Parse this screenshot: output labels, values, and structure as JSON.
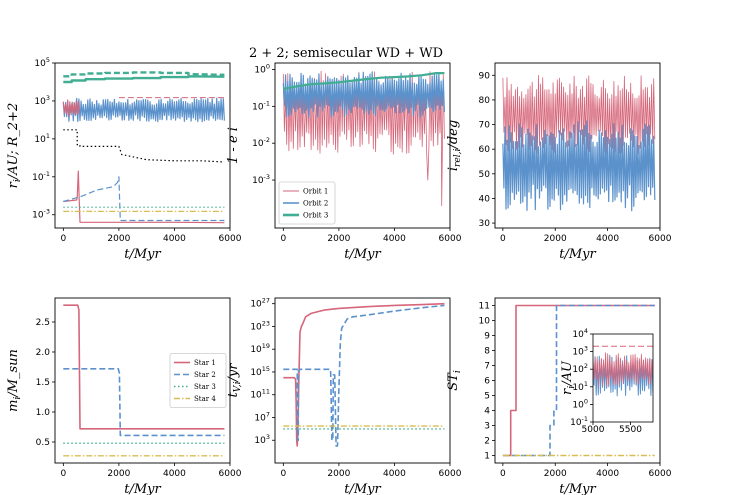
{
  "title": "2 + 2; semisecular WD + WD",
  "colors": {
    "red": "#d6667a",
    "blue": "#5b92cc",
    "green": "#41ad92",
    "yellow": "#d8bd52",
    "black": "#000000"
  },
  "chart_data": [
    {
      "id": "p1",
      "type": "line",
      "xlabel": "t/Myr",
      "ylabel": "r_i/AU; R_2+2",
      "yscale": "log",
      "xlim": [
        -300,
        6000
      ],
      "ylim": [
        0.0002,
        100000
      ],
      "xticks": [
        0,
        2000,
        4000,
        6000
      ],
      "xticklabels": [
        "0",
        "2000",
        "4000",
        "6000"
      ],
      "yticks": [
        0.001,
        0.1,
        10,
        1000,
        100000
      ],
      "yticklabels": [
        "10^-3",
        "10^-1",
        "10^1",
        "10^3",
        "10^5"
      ],
      "series": [
        {
          "color": "green",
          "style": "solid",
          "width": 2.4,
          "x": [
            0,
            300,
            300,
            800,
            800,
            1500,
            1500,
            2500,
            2500,
            3500,
            3500,
            4500,
            4500,
            5800
          ],
          "y": [
            10000,
            10000,
            12000,
            12000,
            14000,
            14000,
            15000,
            15000,
            16000,
            16000,
            18000,
            18000,
            20000,
            19000
          ]
        },
        {
          "color": "green",
          "style": "dashed",
          "width": 2.4,
          "x": [
            0,
            300,
            300,
            800,
            800,
            1500,
            1500,
            2500,
            2500,
            3500,
            3500,
            4500,
            4500,
            5800
          ],
          "y": [
            20000,
            20000,
            25000,
            25000,
            28000,
            28000,
            30000,
            30000,
            32000,
            32000,
            30000,
            30000,
            26000,
            24000
          ]
        },
        {
          "color": "blue",
          "style": "solid",
          "width": 1.2,
          "osc": true,
          "x": [
            0,
            5800
          ],
          "ylow": 80,
          "yhigh": 1400
        },
        {
          "color": "red",
          "style": "solid",
          "width": 1.0,
          "osc": true,
          "x": [
            0,
            580
          ],
          "ylow": 150,
          "yhigh": 1200
        },
        {
          "color": "red",
          "style": "solid",
          "width": 1.2,
          "x": [
            0,
            480,
            500,
            540,
            580,
            600,
            800,
            1800,
            2500,
            4000,
            5800
          ],
          "y": [
            0.005,
            0.006,
            0.008,
            0.2,
            0.003,
            0.0004,
            0.0004,
            0.0004,
            0.0004,
            0.0004,
            0.00038
          ]
        },
        {
          "color": "red",
          "style": "dashed",
          "width": 1.0,
          "x": [
            2000,
            5800
          ],
          "y": [
            1500,
            1500
          ]
        },
        {
          "color": "blue",
          "style": "dashed",
          "width": 1.2,
          "x": [
            0,
            200,
            500,
            700,
            1200,
            1800,
            1950,
            2000,
            2050,
            2300,
            4000,
            5800
          ],
          "y": [
            0.005,
            0.006,
            0.008,
            0.01,
            0.02,
            0.03,
            0.05,
            0.1,
            0.0005,
            0.0005,
            0.0005,
            0.0005
          ]
        },
        {
          "color": "black",
          "style": "dotted",
          "width": 1.2,
          "x": [
            0,
            500,
            500,
            600,
            600,
            2000,
            2100,
            3000,
            4000,
            5000,
            5800
          ],
          "y": [
            30,
            30,
            5,
            5,
            4,
            4,
            1.5,
            0.8,
            0.7,
            0.7,
            0.6
          ]
        },
        {
          "color": "green",
          "style": "dotted",
          "width": 1.2,
          "x": [
            0,
            5800
          ],
          "y": [
            0.0025,
            0.0025
          ]
        },
        {
          "color": "yellow",
          "style": "dashdot",
          "width": 1.2,
          "x": [
            0,
            5800
          ],
          "y": [
            0.0015,
            0.0015
          ]
        }
      ]
    },
    {
      "id": "p2",
      "type": "line",
      "xlabel": "t/Myr",
      "ylabel": "1 - e_i",
      "yscale": "log",
      "xlim": [
        -300,
        6000
      ],
      "ylim": [
        5e-05,
        1.5
      ],
      "xticks": [
        0,
        2000,
        4000,
        6000
      ],
      "xticklabels": [
        "0",
        "2000",
        "4000",
        "6000"
      ],
      "yticks": [
        0.001,
        0.01,
        0.1,
        1
      ],
      "yticklabels": [
        "10^-3",
        "10^-2",
        "10^-1",
        "10^0"
      ],
      "legend": {
        "position": "lower left",
        "entries": [
          {
            "label": "Orbit 1",
            "color": "red",
            "width": 1
          },
          {
            "label": "Orbit 2",
            "color": "blue",
            "width": 1.6
          },
          {
            "label": "Orbit 3",
            "color": "green",
            "width": 2.6
          }
        ]
      },
      "series": [
        {
          "color": "red",
          "style": "solid",
          "width": 0.8,
          "osc": true,
          "x": [
            0,
            5800
          ],
          "ylow": 0.005,
          "yhigh": 0.9,
          "spikes": [
            [
              5700,
              0.0002
            ],
            [
              5200,
              0.001
            ]
          ]
        },
        {
          "color": "blue",
          "style": "solid",
          "width": 1.2,
          "osc": true,
          "x": [
            0,
            5800
          ],
          "ylow": 0.05,
          "yhigh": 0.9
        },
        {
          "color": "green",
          "style": "solid",
          "width": 2.2,
          "x": [
            0,
            500,
            1000,
            1500,
            2000,
            2500,
            3000,
            3500,
            4000,
            4500,
            5000,
            5500,
            5800
          ],
          "y": [
            0.3,
            0.35,
            0.4,
            0.42,
            0.45,
            0.5,
            0.55,
            0.6,
            0.62,
            0.65,
            0.7,
            0.8,
            0.8
          ]
        }
      ]
    },
    {
      "id": "p3",
      "type": "line",
      "xlabel": "t/Myr",
      "ylabel": "i_rel,i/deg",
      "yscale": "linear",
      "xlim": [
        -300,
        6000
      ],
      "ylim": [
        28,
        95
      ],
      "xticks": [
        0,
        2000,
        4000,
        6000
      ],
      "xticklabels": [
        "0",
        "2000",
        "4000",
        "6000"
      ],
      "yticks": [
        30,
        40,
        50,
        60,
        70,
        80,
        90
      ],
      "yticklabels": [
        "30",
        "40",
        "50",
        "60",
        "70",
        "80",
        "90"
      ],
      "series": [
        {
          "color": "red",
          "style": "solid",
          "width": 0.8,
          "osc": true,
          "x": [
            0,
            5800
          ],
          "ylow": 58,
          "yhigh": 90
        },
        {
          "color": "blue",
          "style": "solid",
          "width": 1.2,
          "osc": true,
          "x": [
            0,
            5800
          ],
          "ylow": 35,
          "yhigh": 72
        }
      ]
    },
    {
      "id": "p4",
      "type": "line",
      "xlabel": "t/Myr",
      "ylabel": "m_i/M_sun",
      "yscale": "linear",
      "xlim": [
        -300,
        6000
      ],
      "ylim": [
        0.15,
        2.9
      ],
      "xticks": [
        0,
        2000,
        4000,
        6000
      ],
      "xticklabels": [
        "0",
        "2000",
        "4000",
        "6000"
      ],
      "yticks": [
        0.5,
        1.0,
        1.5,
        2.0,
        2.5
      ],
      "yticklabels": [
        "0.5",
        "1.0",
        "1.5",
        "2.0",
        "2.5"
      ],
      "legend": {
        "position": "center right",
        "entries": [
          {
            "label": "Star 1",
            "color": "red",
            "style": "solid"
          },
          {
            "label": "Star 2",
            "color": "blue",
            "style": "dashed"
          },
          {
            "label": "Star 3",
            "color": "green",
            "style": "dotted"
          },
          {
            "label": "Star 4",
            "color": "yellow",
            "style": "dashdot"
          }
        ]
      },
      "series": [
        {
          "color": "red",
          "style": "solid",
          "width": 1.6,
          "x": [
            0,
            520,
            560,
            600,
            5800
          ],
          "y": [
            2.78,
            2.78,
            2.7,
            0.72,
            0.72
          ]
        },
        {
          "color": "blue",
          "style": "dashed",
          "width": 1.6,
          "x": [
            0,
            1980,
            2020,
            2050,
            5800
          ],
          "y": [
            1.72,
            1.72,
            1.65,
            0.61,
            0.61
          ]
        },
        {
          "color": "green",
          "style": "dotted",
          "width": 1.4,
          "x": [
            0,
            5800
          ],
          "y": [
            0.48,
            0.48
          ]
        },
        {
          "color": "yellow",
          "style": "dashdot",
          "width": 1.4,
          "x": [
            0,
            5800
          ],
          "y": [
            0.27,
            0.27
          ]
        }
      ]
    },
    {
      "id": "p5",
      "type": "line",
      "xlabel": "t/Myr",
      "ylabel": "t_V,i/yr",
      "yscale": "log",
      "xlim": [
        -300,
        6000
      ],
      "ylim": [
        0.1,
        1e+28
      ],
      "xticks": [
        0,
        2000,
        4000,
        6000
      ],
      "xticklabels": [
        "0",
        "2000",
        "4000",
        "6000"
      ],
      "yticks": [
        1000,
        10000000.0,
        100000000000.0,
        1000000000000000.0,
        1e+19,
        1e+23,
        1e+27
      ],
      "yticklabels": [
        "10^3",
        "10^7",
        "10^11",
        "10^15",
        "10^19",
        "10^23",
        "10^27"
      ],
      "series": [
        {
          "color": "red",
          "style": "solid",
          "width": 1.6,
          "x": [
            0,
            400,
            440,
            460,
            480,
            500,
            520,
            560,
            600,
            650,
            700,
            800,
            1000,
            1500,
            2000,
            3000,
            4000,
            5000,
            5800
          ],
          "y": [
            100000000000000.0,
            100000000000000.0,
            50000000000000.0,
            10000000000.0,
            1000.0,
            100.0,
            10000.0,
            100000000000000.0,
            1e+22,
            1e+23,
            3e+23,
            5e+24,
            2e+25,
            8e+25,
            1.5e+26,
            3e+26,
            5e+26,
            7e+26,
            1e+27
          ]
        },
        {
          "color": "blue",
          "style": "dashed",
          "width": 1.6,
          "x": [
            0,
            500,
            500,
            520,
            540,
            540,
            600,
            1700,
            1750,
            1780,
            1800,
            1850,
            1900,
            1950,
            2000,
            2050,
            2100,
            2300,
            2500,
            3000,
            4000,
            5000,
            5800
          ],
          "y": [
            3000000000000000.0,
            3000000000000000.0,
            3000000000000000.0,
            1000.0,
            1000.0,
            1000000000000000.0,
            3000000000000000.0,
            3000000000000000.0,
            1000.0,
            1000.0,
            300000000000000.0,
            300000000000000.0,
            100.0,
            100.0,
            1000000000000.0,
            1e+20,
            5e+22,
            2e+24,
            5e+24,
            1e+25,
            5e+25,
            2e+26,
            5e+26
          ]
        },
        {
          "color": "yellow",
          "style": "dashdot",
          "width": 1.4,
          "x": [
            0,
            5800
          ],
          "y": [
            300000.0,
            300000.0
          ]
        },
        {
          "color": "green",
          "style": "dotted",
          "width": 1.4,
          "x": [
            0,
            5800
          ],
          "y": [
            100000.0,
            100000.0
          ]
        }
      ]
    },
    {
      "id": "p6",
      "type": "line",
      "xlabel": "t/Myr",
      "ylabel": "ST_i",
      "yscale": "linear",
      "xlim": [
        -300,
        6000
      ],
      "ylim": [
        0.5,
        11.5
      ],
      "xticks": [
        0,
        2000,
        4000,
        6000
      ],
      "xticklabels": [
        "0",
        "2000",
        "4000",
        "6000"
      ],
      "yticks": [
        1,
        2,
        3,
        4,
        5,
        6,
        7,
        8,
        9,
        10,
        11
      ],
      "yticklabels": [
        "1",
        "2",
        "3",
        "4",
        "5",
        "6",
        "7",
        "8",
        "9",
        "10",
        "11"
      ],
      "series": [
        {
          "color": "red",
          "style": "solid",
          "width": 1.6,
          "x": [
            0,
            300,
            300,
            500,
            500,
            600,
            600,
            5800
          ],
          "y": [
            1,
            1,
            4,
            4,
            11,
            11,
            11,
            11
          ]
        },
        {
          "color": "blue",
          "style": "dashed",
          "width": 1.6,
          "x": [
            0,
            1800,
            1800,
            1950,
            1950,
            2050,
            2050,
            5800
          ],
          "y": [
            1,
            1,
            3,
            3,
            4,
            4,
            11,
            11
          ]
        },
        {
          "color": "yellow",
          "style": "dashdot",
          "width": 1.4,
          "x": [
            0,
            5800
          ],
          "y": [
            1,
            1
          ]
        }
      ],
      "inset": {
        "xlabel": "",
        "ylabel": "r_i/AU",
        "yscale": "log",
        "xlim": [
          5000,
          5800
        ],
        "ylim": [
          0.1,
          10000
        ],
        "xticks": [
          5000,
          5500
        ],
        "xticklabels": [
          "5000",
          "5500"
        ],
        "yticks": [
          0.1,
          1,
          10,
          100,
          1000,
          10000
        ],
        "yticklabels": [
          "10^-1",
          "10^0",
          "10^1",
          "10^2",
          "10^3",
          "10^4"
        ],
        "series": [
          {
            "color": "red",
            "style": "dashed",
            "width": 1.0,
            "x": [
              5000,
              5800
            ],
            "y": [
              2000,
              2000
            ]
          },
          {
            "color": "blue",
            "style": "solid",
            "width": 1.0,
            "osc": true,
            "x": [
              5000,
              5800
            ],
            "ylow": 3,
            "yhigh": 800
          },
          {
            "color": "red",
            "style": "solid",
            "width": 0.8,
            "osc": true,
            "x": [
              5000,
              5800
            ],
            "ylow": 10,
            "yhigh": 900
          }
        ]
      }
    }
  ]
}
